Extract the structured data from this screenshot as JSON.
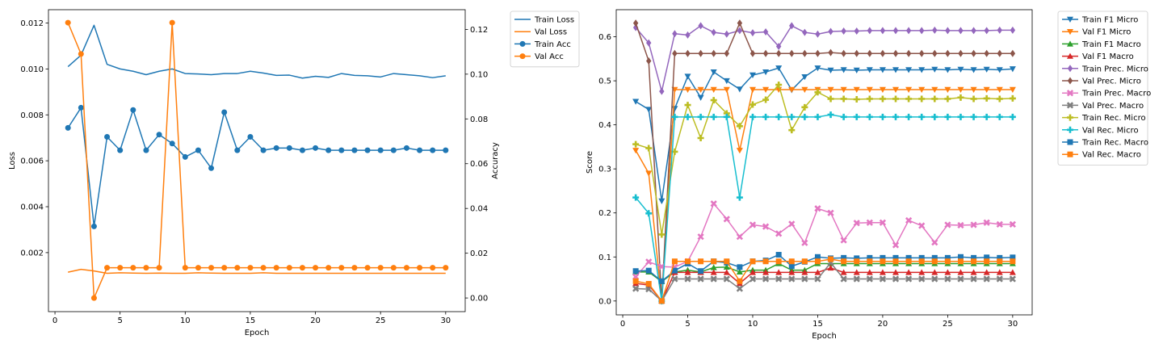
{
  "chart_data": [
    {
      "type": "line",
      "xlabel": "Epoch",
      "ylabel": "Loss",
      "y2label": "Accuracy",
      "xlim": [
        -0.5,
        31.5
      ],
      "ylim": [
        -0.00057,
        0.01258
      ],
      "y2lim": [
        -0.0061,
        0.1288
      ],
      "xticks": [
        0,
        5,
        10,
        15,
        20,
        25,
        30
      ],
      "yticks": [
        0.002,
        0.004,
        0.006,
        0.008,
        0.01,
        0.012
      ],
      "ytick_labels": [
        "0.002",
        "0.004",
        "0.006",
        "0.008",
        "0.010",
        "0.012"
      ],
      "y2ticks": [
        0.0,
        0.02,
        0.04,
        0.06,
        0.08,
        0.1,
        0.12
      ],
      "y2tick_labels": [
        "0.00",
        "0.02",
        "0.04",
        "0.06",
        "0.08",
        "0.10",
        "0.12"
      ],
      "legend_position": "outside-right",
      "grid": false,
      "x": [
        1,
        2,
        3,
        4,
        5,
        6,
        7,
        8,
        9,
        10,
        11,
        12,
        13,
        14,
        15,
        16,
        17,
        18,
        19,
        20,
        21,
        22,
        23,
        24,
        25,
        26,
        27,
        28,
        29,
        30
      ],
      "series": [
        {
          "name": "Train Loss",
          "axis": "left",
          "color": "#1f77b4",
          "marker": "none",
          "values": [
            0.0101,
            0.0106,
            0.0119,
            0.0102,
            0.01,
            0.0099,
            0.00975,
            0.0099,
            0.01,
            0.0098,
            0.00978,
            0.00975,
            0.0098,
            0.0098,
            0.0099,
            0.00982,
            0.00972,
            0.00973,
            0.0096,
            0.00968,
            0.00963,
            0.0098,
            0.00972,
            0.0097,
            0.00965,
            0.0098,
            0.00975,
            0.0097,
            0.00962,
            0.0097
          ]
        },
        {
          "name": "Val Loss",
          "axis": "left",
          "color": "#ff7f0e",
          "marker": "none",
          "values": [
            0.00115,
            0.00127,
            0.0012,
            0.0011,
            0.00112,
            0.00111,
            0.0011,
            0.00111,
            0.0011,
            0.0011,
            0.00112,
            0.00111,
            0.0011,
            0.0011,
            0.0011,
            0.00112,
            0.0011,
            0.0011,
            0.0011,
            0.0011,
            0.0011,
            0.0011,
            0.0011,
            0.0011,
            0.0011,
            0.0011,
            0.0011,
            0.0011,
            0.0011,
            0.0011
          ]
        },
        {
          "name": "Train Acc",
          "axis": "right",
          "color": "#1f77b4",
          "marker": "circle",
          "values": [
            0.076,
            0.085,
            0.032,
            0.072,
            0.066,
            0.084,
            0.066,
            0.073,
            0.069,
            0.063,
            0.066,
            0.058,
            0.083,
            0.066,
            0.072,
            0.066,
            0.067,
            0.067,
            0.066,
            0.067,
            0.066,
            0.066,
            0.066,
            0.066,
            0.066,
            0.066,
            0.067,
            0.066,
            0.066,
            0.066
          ]
        },
        {
          "name": "Val Acc",
          "axis": "right",
          "color": "#ff7f0e",
          "marker": "circle",
          "values": [
            0.123,
            0.109,
            0.0,
            0.0135,
            0.0135,
            0.0135,
            0.0135,
            0.0135,
            0.123,
            0.0135,
            0.0135,
            0.0135,
            0.0135,
            0.0135,
            0.0135,
            0.0135,
            0.0135,
            0.0135,
            0.0135,
            0.0135,
            0.0135,
            0.0135,
            0.0135,
            0.0135,
            0.0135,
            0.0135,
            0.0135,
            0.0135,
            0.0135,
            0.0135
          ]
        }
      ]
    },
    {
      "type": "line",
      "xlabel": "Epoch",
      "ylabel": "Score",
      "xlim": [
        -0.5,
        31.5
      ],
      "ylim": [
        -0.0315,
        0.6615
      ],
      "xticks": [
        0,
        5,
        10,
        15,
        20,
        25,
        30
      ],
      "yticks": [
        0.0,
        0.1,
        0.2,
        0.3,
        0.4,
        0.5,
        0.6
      ],
      "ytick_labels": [
        "0.0",
        "0.1",
        "0.2",
        "0.3",
        "0.4",
        "0.5",
        "0.6"
      ],
      "legend_position": "outside-right",
      "grid": false,
      "x": [
        1,
        2,
        3,
        4,
        5,
        6,
        7,
        8,
        9,
        10,
        11,
        12,
        13,
        14,
        15,
        16,
        17,
        18,
        19,
        20,
        21,
        22,
        23,
        24,
        25,
        26,
        27,
        28,
        29,
        30
      ],
      "series": [
        {
          "name": "Train F1 Micro",
          "color": "#1f77b4",
          "marker": "triangle-down",
          "values": [
            0.453,
            0.435,
            0.227,
            0.437,
            0.51,
            0.462,
            0.52,
            0.5,
            0.481,
            0.513,
            0.52,
            0.529,
            0.479,
            0.509,
            0.529,
            0.524,
            0.525,
            0.524,
            0.525,
            0.525,
            0.525,
            0.525,
            0.525,
            0.526,
            0.525,
            0.526,
            0.525,
            0.526,
            0.525,
            0.527
          ]
        },
        {
          "name": "Val F1 Micro",
          "color": "#ff7f0e",
          "marker": "triangle-down",
          "values": [
            0.342,
            0.29,
            0.0,
            0.48,
            0.48,
            0.48,
            0.48,
            0.48,
            0.342,
            0.48,
            0.48,
            0.48,
            0.48,
            0.48,
            0.48,
            0.48,
            0.48,
            0.48,
            0.48,
            0.48,
            0.48,
            0.48,
            0.48,
            0.48,
            0.48,
            0.48,
            0.48,
            0.48,
            0.48,
            0.48
          ]
        },
        {
          "name": "Train F1 Macro",
          "color": "#2ca02c",
          "marker": "triangle-up",
          "values": [
            0.066,
            0.066,
            0.044,
            0.066,
            0.07,
            0.066,
            0.076,
            0.077,
            0.066,
            0.07,
            0.07,
            0.085,
            0.07,
            0.07,
            0.085,
            0.085,
            0.085,
            0.085,
            0.085,
            0.085,
            0.085,
            0.085,
            0.085,
            0.085,
            0.085,
            0.085,
            0.085,
            0.085,
            0.085,
            0.085
          ]
        },
        {
          "name": "Val F1 Macro",
          "color": "#d62728",
          "marker": "triangle-up",
          "values": [
            0.04,
            0.036,
            0.0,
            0.065,
            0.065,
            0.065,
            0.065,
            0.065,
            0.04,
            0.065,
            0.065,
            0.065,
            0.065,
            0.065,
            0.065,
            0.075,
            0.065,
            0.065,
            0.065,
            0.065,
            0.065,
            0.065,
            0.065,
            0.065,
            0.065,
            0.065,
            0.065,
            0.065,
            0.065,
            0.065
          ]
        },
        {
          "name": "Train Prec. Micro",
          "color": "#9467bd",
          "marker": "diamond",
          "values": [
            0.621,
            0.586,
            0.476,
            0.607,
            0.604,
            0.625,
            0.61,
            0.606,
            0.614,
            0.609,
            0.611,
            0.578,
            0.625,
            0.61,
            0.606,
            0.612,
            0.613,
            0.613,
            0.614,
            0.614,
            0.614,
            0.614,
            0.614,
            0.615,
            0.614,
            0.614,
            0.614,
            0.614,
            0.615,
            0.615
          ]
        },
        {
          "name": "Val Prec. Micro",
          "color": "#8c564b",
          "marker": "diamond",
          "values": [
            0.631,
            0.545,
            0.0,
            0.562,
            0.562,
            0.562,
            0.562,
            0.562,
            0.631,
            0.562,
            0.562,
            0.562,
            0.562,
            0.562,
            0.562,
            0.564,
            0.562,
            0.562,
            0.562,
            0.562,
            0.562,
            0.562,
            0.562,
            0.562,
            0.562,
            0.562,
            0.562,
            0.562,
            0.562,
            0.562
          ]
        },
        {
          "name": "Train Prec. Macro",
          "color": "#e377c2",
          "marker": "x",
          "values": [
            0.055,
            0.089,
            0.078,
            0.077,
            0.09,
            0.146,
            0.221,
            0.186,
            0.146,
            0.173,
            0.169,
            0.153,
            0.175,
            0.132,
            0.21,
            0.2,
            0.138,
            0.177,
            0.178,
            0.178,
            0.127,
            0.183,
            0.171,
            0.133,
            0.173,
            0.172,
            0.173,
            0.178,
            0.174,
            0.174
          ]
        },
        {
          "name": "Val Prec. Macro",
          "color": "#7f7f7f",
          "marker": "x",
          "values": [
            0.028,
            0.027,
            0.0,
            0.05,
            0.05,
            0.05,
            0.05,
            0.05,
            0.028,
            0.05,
            0.05,
            0.05,
            0.05,
            0.05,
            0.05,
            0.087,
            0.05,
            0.05,
            0.05,
            0.05,
            0.05,
            0.05,
            0.05,
            0.05,
            0.05,
            0.05,
            0.05,
            0.05,
            0.05,
            0.05
          ]
        },
        {
          "name": "Train Rec. Micro",
          "color": "#bcbd22",
          "marker": "plus",
          "values": [
            0.356,
            0.347,
            0.151,
            0.339,
            0.445,
            0.37,
            0.456,
            0.426,
            0.397,
            0.446,
            0.457,
            0.491,
            0.388,
            0.44,
            0.474,
            0.459,
            0.459,
            0.458,
            0.459,
            0.459,
            0.459,
            0.459,
            0.459,
            0.459,
            0.459,
            0.462,
            0.459,
            0.46,
            0.459,
            0.46
          ]
        },
        {
          "name": "Val Rec. Micro",
          "color": "#17becf",
          "marker": "plus",
          "values": [
            0.235,
            0.199,
            0.0,
            0.418,
            0.418,
            0.418,
            0.418,
            0.418,
            0.235,
            0.418,
            0.418,
            0.418,
            0.418,
            0.418,
            0.418,
            0.423,
            0.418,
            0.418,
            0.418,
            0.418,
            0.418,
            0.418,
            0.418,
            0.418,
            0.418,
            0.418,
            0.418,
            0.418,
            0.418,
            0.418
          ]
        },
        {
          "name": "Train Rec. Macro",
          "color": "#1f77b4",
          "marker": "square",
          "values": [
            0.068,
            0.069,
            0.045,
            0.069,
            0.085,
            0.068,
            0.09,
            0.087,
            0.077,
            0.09,
            0.092,
            0.105,
            0.079,
            0.089,
            0.1,
            0.097,
            0.098,
            0.097,
            0.098,
            0.098,
            0.098,
            0.098,
            0.098,
            0.098,
            0.098,
            0.1,
            0.098,
            0.099,
            0.098,
            0.099
          ]
        },
        {
          "name": "Val Rec. Macro",
          "color": "#ff7f0e",
          "marker": "square",
          "values": [
            0.045,
            0.039,
            0.0,
            0.09,
            0.09,
            0.09,
            0.09,
            0.09,
            0.045,
            0.09,
            0.09,
            0.09,
            0.09,
            0.09,
            0.09,
            0.095,
            0.09,
            0.09,
            0.09,
            0.09,
            0.09,
            0.09,
            0.09,
            0.09,
            0.09,
            0.09,
            0.09,
            0.09,
            0.09,
            0.09
          ]
        }
      ]
    }
  ]
}
